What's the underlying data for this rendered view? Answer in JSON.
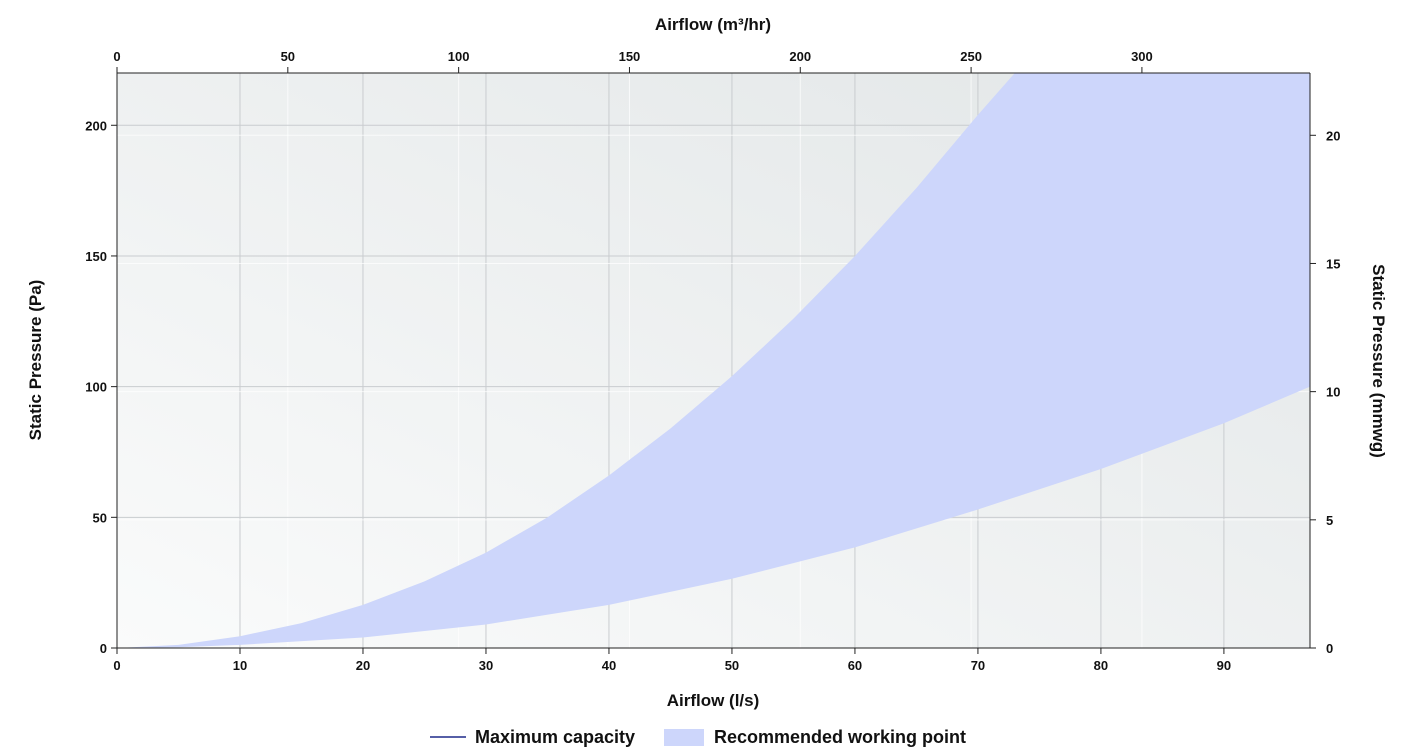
{
  "chart_data": {
    "type": "area",
    "title": "",
    "x_bottom": {
      "label": "Airflow (l/s)",
      "range": [
        0,
        97
      ],
      "ticks": [
        0,
        10,
        20,
        30,
        40,
        50,
        60,
        70,
        80,
        90
      ]
    },
    "x_top": {
      "label": "Airflow (m³/hr)",
      "range": [
        0,
        349.2
      ],
      "ticks": [
        0,
        50,
        100,
        150,
        200,
        250,
        300
      ]
    },
    "y_left": {
      "label": "Static Pressure (Pa)",
      "range": [
        0,
        220
      ],
      "ticks": [
        0,
        50,
        100,
        150,
        200
      ]
    },
    "y_right": {
      "label": "Static Pressure (mmwg)",
      "range": [
        0,
        22.43
      ],
      "ticks": [
        0,
        5,
        10,
        15,
        20
      ]
    },
    "grid": true,
    "legend": {
      "position": "bottom",
      "entries": [
        {
          "label": "Maximum capacity",
          "kind": "line",
          "color": "#1f2a8a"
        },
        {
          "label": "Recommended working point",
          "kind": "area",
          "color": "#cdd6fb"
        }
      ]
    },
    "series": [
      {
        "name": "Recommended working point",
        "kind": "band",
        "color": "#cdd6fb",
        "upper": {
          "x": [
            0,
            5,
            10,
            15,
            20,
            25,
            30,
            35,
            40,
            45,
            50,
            55,
            60,
            65,
            70,
            73,
            97
          ],
          "y": [
            0,
            1.2,
            4.5,
            9.5,
            16.5,
            25.5,
            36.5,
            50,
            66,
            84,
            104,
            126,
            150,
            176,
            204,
            220,
            220
          ]
        },
        "lower": {
          "x": [
            0,
            5,
            10,
            20,
            30,
            40,
            50,
            60,
            70,
            80,
            90,
            97
          ],
          "y": [
            0,
            0.3,
            1.2,
            4,
            9,
            16.5,
            26.5,
            38.5,
            53,
            68.5,
            86,
            100
          ]
        }
      }
    ]
  }
}
